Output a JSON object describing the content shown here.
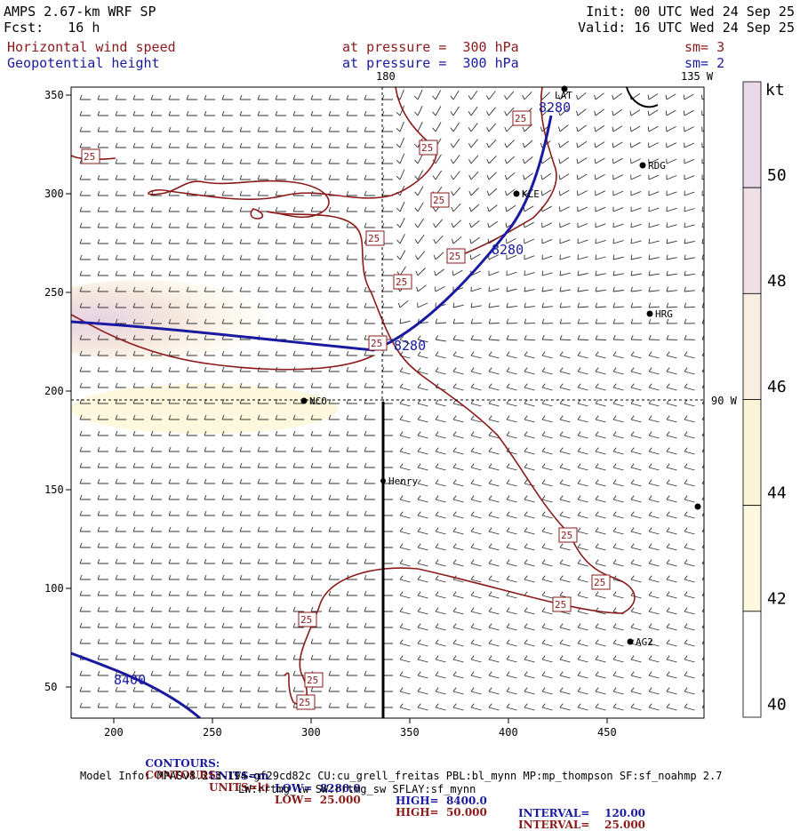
{
  "header": {
    "model": "AMPS 2.67-km WRF SP",
    "fcst": "Fcst:   16 h",
    "init": "Init: 00 UTC Wed 24 Sep 25",
    "valid": "Valid: 16 UTC Wed 24 Sep 25",
    "field1": "Horizontal wind speed",
    "field1_level": "at pressure =  300 hPa",
    "field1_sm": "sm= 3",
    "field2": "Geopotential height",
    "field2_level": "at pressure =  300 hPa",
    "field2_sm": "sm= 2"
  },
  "map": {
    "lon_180": "180",
    "lon_135w": "135 W",
    "lon_90w": "90 W",
    "x_ticks": [
      "200",
      "250",
      "300",
      "350",
      "400",
      "450"
    ],
    "y_ticks": [
      "350",
      "300",
      "250",
      "200",
      "150",
      "100",
      "50"
    ],
    "stations": [
      {
        "name": "RDG"
      },
      {
        "name": "KLE"
      },
      {
        "name": "HRG"
      },
      {
        "name": "NCO"
      },
      {
        "name": "Henry"
      },
      {
        "name": "AG2"
      },
      {
        "name": "LAT"
      }
    ],
    "height_labels": [
      "8280",
      "8280",
      "8280",
      "8400"
    ],
    "speed_label": "25"
  },
  "colorbar": {
    "unit": "kt",
    "levels": [
      "50",
      "48",
      "46",
      "44",
      "42",
      "40"
    ],
    "colors": [
      "#e8d8e8",
      "#f0e0e6",
      "#f8efe2",
      "#fbf5d8",
      "#fdf9de",
      "#ffffff"
    ]
  },
  "footer": {
    "row1": {
      "label": "CONTOURS:",
      "units": "UNITS=m",
      "low": "LOW=  8280.0",
      "high": "HIGH=  8400.0",
      "interval": "INTERVAL=    120.00"
    },
    "row2": {
      "label": "CONTOURS:",
      "units": "UNITS=kt",
      "low": "LOW=  25.000",
      "high": "HIGH=  50.000",
      "interval": "INTERVAL=    25.000"
    },
    "model_info": "Model Info: MPASv8.2.3-194-gf29cd82c CU:cu_grell_freitas PBL:bl_mynn MP:mp_thompson SF:sf_noahmp 2.7",
    "model_info2": "LW:rrtmg_lw SW:rrtmg_sw SFLAY:sf_mynn"
  }
}
